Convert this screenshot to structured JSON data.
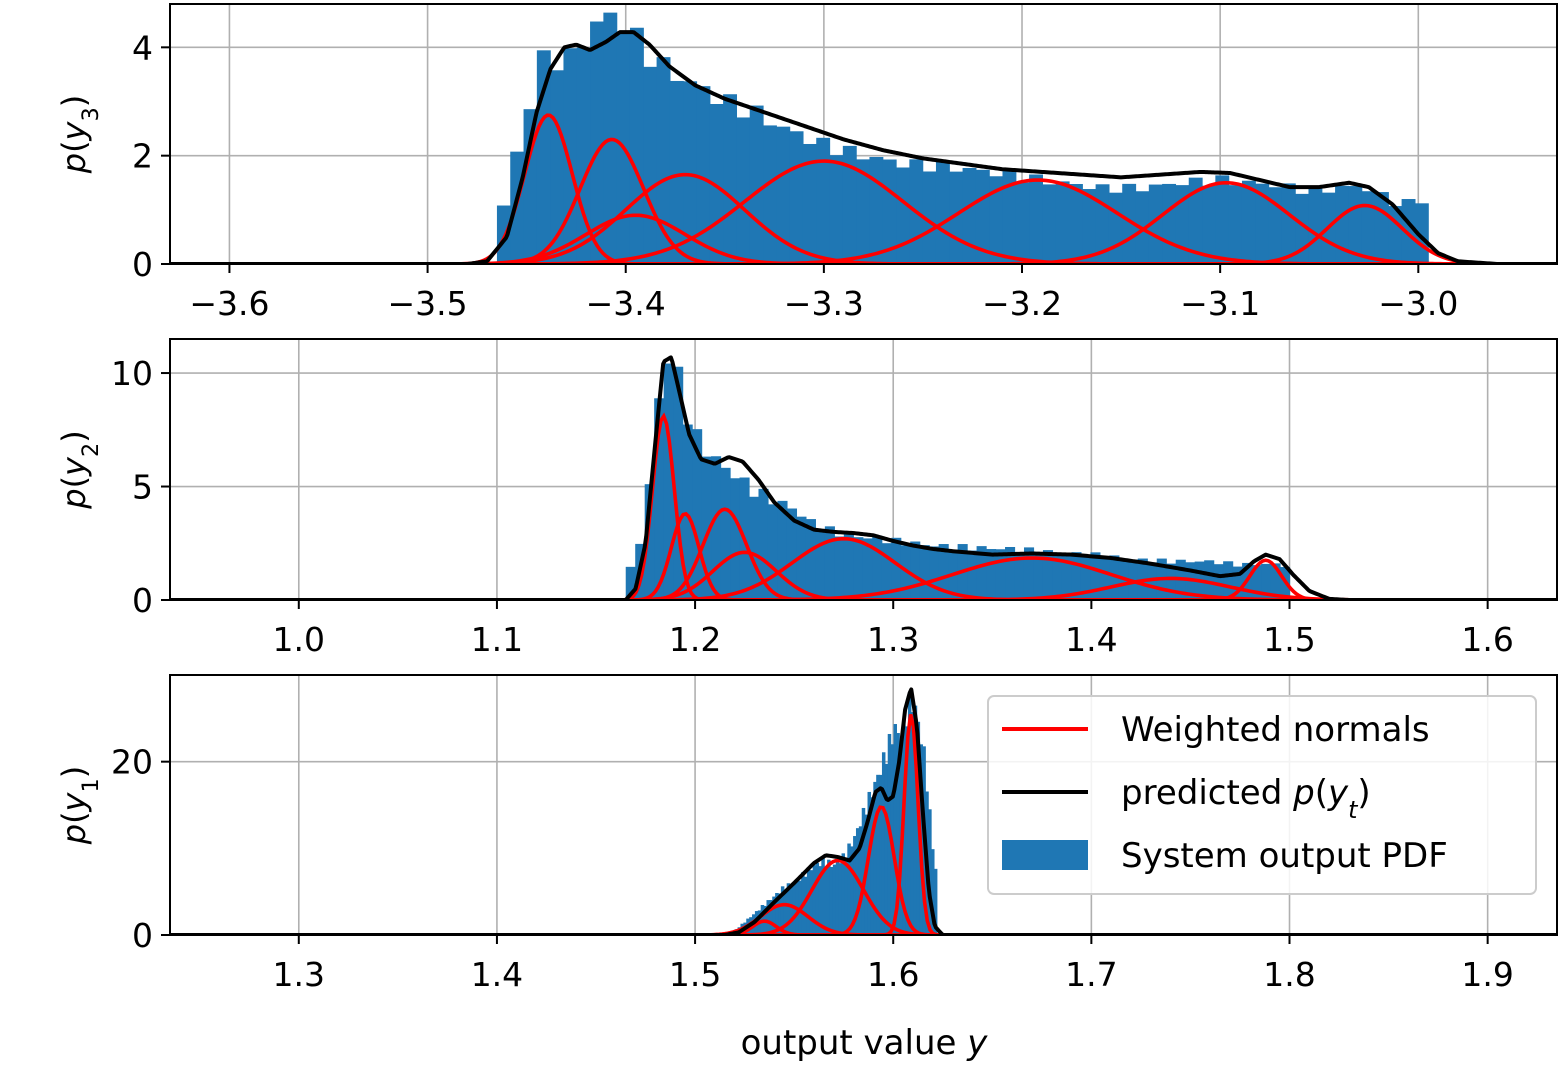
{
  "figure": {
    "xlabel": "output value y"
  },
  "legend": {
    "placement": "upper-right of bottom panel",
    "entries": [
      {
        "label": "Weighted normals",
        "kind": "line",
        "color": "#ff0000"
      },
      {
        "label": "predicted p(y_t)",
        "kind": "line",
        "color": "#000000"
      },
      {
        "label": "System output PDF",
        "kind": "patch",
        "color": "#1f77b4"
      }
    ]
  },
  "colors": {
    "histogram": "#1f77b4",
    "components": "#ff0000",
    "predicted": "#000000",
    "grid": "#b0b0b0"
  },
  "chart_data": [
    {
      "type": "histogram+mixture",
      "ylabel": "p(y3)",
      "xlim": [
        -3.63,
        -2.93
      ],
      "ylim": [
        0,
        4.8
      ],
      "xticks": [
        -3.6,
        -3.5,
        -3.4,
        -3.3,
        -3.2,
        -3.1,
        -3.0
      ],
      "xticklabels": [
        "−3.6",
        "−3.5",
        "−3.4",
        "−3.3",
        "−3.2",
        "−3.1",
        "−3.0"
      ],
      "yticks": [
        0,
        2,
        4
      ],
      "yticklabels": [
        "0",
        "2",
        "4"
      ],
      "grid": true,
      "hist_range": [
        -3.465,
        -2.995
      ],
      "hist_profile": [
        [
          -3.465,
          0.6
        ],
        [
          -3.458,
          1.6
        ],
        [
          -3.45,
          2.7
        ],
        [
          -3.444,
          3.7
        ],
        [
          -3.435,
          3.8
        ],
        [
          -3.425,
          3.8
        ],
        [
          -3.418,
          4.4
        ],
        [
          -3.41,
          4.55
        ],
        [
          -3.402,
          4.5
        ],
        [
          -3.393,
          4.05
        ],
        [
          -3.38,
          3.6
        ],
        [
          -3.365,
          3.3
        ],
        [
          -3.35,
          3.0
        ],
        [
          -3.335,
          2.8
        ],
        [
          -3.32,
          2.5
        ],
        [
          -3.3,
          2.2
        ],
        [
          -3.28,
          2.0
        ],
        [
          -3.26,
          1.85
        ],
        [
          -3.24,
          1.8
        ],
        [
          -3.22,
          1.72
        ],
        [
          -3.2,
          1.6
        ],
        [
          -3.18,
          1.5
        ],
        [
          -3.16,
          1.4
        ],
        [
          -3.14,
          1.4
        ],
        [
          -3.12,
          1.5
        ],
        [
          -3.1,
          1.55
        ],
        [
          -3.085,
          1.5
        ],
        [
          -3.07,
          1.45
        ],
        [
          -3.055,
          1.35
        ],
        [
          -3.04,
          1.4
        ],
        [
          -3.03,
          1.45
        ],
        [
          -3.02,
          1.3
        ],
        [
          -3.01,
          1.1
        ],
        [
          -2.995,
          1.2
        ]
      ],
      "components": [
        {
          "mu": -3.439,
          "sigma": 0.012,
          "height": 2.75
        },
        {
          "mu": -3.407,
          "sigma": 0.016,
          "height": 2.3
        },
        {
          "mu": -3.395,
          "sigma": 0.025,
          "height": 0.9
        },
        {
          "mu": -3.37,
          "sigma": 0.03,
          "height": 1.65
        },
        {
          "mu": -3.3,
          "sigma": 0.04,
          "height": 1.9
        },
        {
          "mu": -3.192,
          "sigma": 0.04,
          "height": 1.55
        },
        {
          "mu": -3.097,
          "sigma": 0.032,
          "height": 1.5
        },
        {
          "mu": -3.027,
          "sigma": 0.019,
          "height": 1.08
        }
      ],
      "predicted_profile": [
        [
          -3.63,
          0
        ],
        [
          -3.48,
          0
        ],
        [
          -3.47,
          0.05
        ],
        [
          -3.46,
          0.5
        ],
        [
          -3.452,
          1.6
        ],
        [
          -3.445,
          2.8
        ],
        [
          -3.438,
          3.6
        ],
        [
          -3.431,
          4.0
        ],
        [
          -3.425,
          4.05
        ],
        [
          -3.418,
          3.95
        ],
        [
          -3.41,
          4.1
        ],
        [
          -3.403,
          4.28
        ],
        [
          -3.396,
          4.28
        ],
        [
          -3.388,
          4.05
        ],
        [
          -3.378,
          3.65
        ],
        [
          -3.365,
          3.3
        ],
        [
          -3.35,
          3.05
        ],
        [
          -3.33,
          2.8
        ],
        [
          -3.31,
          2.55
        ],
        [
          -3.29,
          2.3
        ],
        [
          -3.27,
          2.1
        ],
        [
          -3.25,
          1.95
        ],
        [
          -3.23,
          1.85
        ],
        [
          -3.21,
          1.75
        ],
        [
          -3.19,
          1.7
        ],
        [
          -3.17,
          1.65
        ],
        [
          -3.15,
          1.6
        ],
        [
          -3.13,
          1.65
        ],
        [
          -3.11,
          1.7
        ],
        [
          -3.095,
          1.68
        ],
        [
          -3.08,
          1.55
        ],
        [
          -3.065,
          1.42
        ],
        [
          -3.05,
          1.42
        ],
        [
          -3.035,
          1.5
        ],
        [
          -3.025,
          1.42
        ],
        [
          -3.013,
          1.1
        ],
        [
          -3.0,
          0.55
        ],
        [
          -2.99,
          0.2
        ],
        [
          -2.98,
          0.05
        ],
        [
          -2.96,
          0
        ],
        [
          -2.93,
          0
        ]
      ]
    },
    {
      "type": "histogram+mixture",
      "ylabel": "p(y2)",
      "xlim": [
        0.935,
        1.635
      ],
      "ylim": [
        0,
        11.5
      ],
      "xticks": [
        1.0,
        1.1,
        1.2,
        1.3,
        1.4,
        1.5,
        1.6
      ],
      "xticklabels": [
        "1.0",
        "1.1",
        "1.2",
        "1.3",
        "1.4",
        "1.5",
        "1.6"
      ],
      "yticks": [
        0,
        5,
        10
      ],
      "yticklabels": [
        "0",
        "5",
        "10"
      ],
      "grid": true,
      "hist_range": [
        1.165,
        1.5
      ],
      "hist_profile": [
        [
          1.165,
          0.8
        ],
        [
          1.172,
          2.5
        ],
        [
          1.178,
          5.5
        ],
        [
          1.183,
          10.0
        ],
        [
          1.188,
          11.0
        ],
        [
          1.195,
          8.5
        ],
        [
          1.2,
          7.2
        ],
        [
          1.21,
          6.2
        ],
        [
          1.22,
          5.5
        ],
        [
          1.23,
          4.8
        ],
        [
          1.24,
          4.4
        ],
        [
          1.25,
          4.0
        ],
        [
          1.26,
          3.3
        ],
        [
          1.27,
          3.0
        ],
        [
          1.28,
          2.8
        ],
        [
          1.29,
          2.75
        ],
        [
          1.3,
          2.6
        ],
        [
          1.32,
          2.4
        ],
        [
          1.34,
          2.3
        ],
        [
          1.36,
          2.25
        ],
        [
          1.38,
          2.1
        ],
        [
          1.4,
          2.0
        ],
        [
          1.42,
          1.8
        ],
        [
          1.44,
          1.7
        ],
        [
          1.46,
          1.7
        ],
        [
          1.475,
          1.55
        ],
        [
          1.49,
          1.6
        ],
        [
          1.5,
          1.5
        ]
      ],
      "components": [
        {
          "mu": 1.184,
          "sigma": 0.0055,
          "height": 8.1
        },
        {
          "mu": 1.195,
          "sigma": 0.007,
          "height": 3.8
        },
        {
          "mu": 1.215,
          "sigma": 0.011,
          "height": 4.0
        },
        {
          "mu": 1.225,
          "sigma": 0.016,
          "height": 2.1
        },
        {
          "mu": 1.275,
          "sigma": 0.026,
          "height": 2.7
        },
        {
          "mu": 1.37,
          "sigma": 0.04,
          "height": 1.85
        },
        {
          "mu": 1.44,
          "sigma": 0.03,
          "height": 0.95
        },
        {
          "mu": 1.488,
          "sigma": 0.008,
          "height": 1.75
        }
      ],
      "predicted_profile": [
        [
          0.935,
          0
        ],
        [
          1.165,
          0
        ],
        [
          1.17,
          0.5
        ],
        [
          1.175,
          2.5
        ],
        [
          1.18,
          7.0
        ],
        [
          1.184,
          10.5
        ],
        [
          1.188,
          10.7
        ],
        [
          1.192,
          9.2
        ],
        [
          1.197,
          7.3
        ],
        [
          1.203,
          6.2
        ],
        [
          1.21,
          6.0
        ],
        [
          1.217,
          6.3
        ],
        [
          1.224,
          6.1
        ],
        [
          1.232,
          5.3
        ],
        [
          1.24,
          4.3
        ],
        [
          1.25,
          3.5
        ],
        [
          1.26,
          3.1
        ],
        [
          1.27,
          3.0
        ],
        [
          1.28,
          2.95
        ],
        [
          1.29,
          2.85
        ],
        [
          1.3,
          2.6
        ],
        [
          1.31,
          2.4
        ],
        [
          1.32,
          2.25
        ],
        [
          1.33,
          2.15
        ],
        [
          1.35,
          2.0
        ],
        [
          1.37,
          2.05
        ],
        [
          1.39,
          2.0
        ],
        [
          1.41,
          1.85
        ],
        [
          1.43,
          1.6
        ],
        [
          1.45,
          1.3
        ],
        [
          1.465,
          1.05
        ],
        [
          1.475,
          1.15
        ],
        [
          1.482,
          1.7
        ],
        [
          1.488,
          2.0
        ],
        [
          1.495,
          1.8
        ],
        [
          1.502,
          1.1
        ],
        [
          1.51,
          0.4
        ],
        [
          1.52,
          0.05
        ],
        [
          1.53,
          0
        ],
        [
          1.635,
          0
        ]
      ]
    },
    {
      "type": "histogram+mixture",
      "ylabel": "p(y1)",
      "xlim": [
        1.235,
        1.935
      ],
      "ylim": [
        0,
        30
      ],
      "xticks": [
        1.3,
        1.4,
        1.5,
        1.6,
        1.7,
        1.8,
        1.9
      ],
      "xticklabels": [
        "1.3",
        "1.4",
        "1.5",
        "1.6",
        "1.7",
        "1.8",
        "1.9"
      ],
      "yticks": [
        0,
        20
      ],
      "yticklabels": [
        "0",
        "20"
      ],
      "grid": true,
      "hist_range": [
        1.52,
        1.622
      ],
      "hist_profile": [
        [
          1.52,
          0.5
        ],
        [
          1.525,
          1.5
        ],
        [
          1.53,
          2.5
        ],
        [
          1.535,
          3.5
        ],
        [
          1.54,
          4.5
        ],
        [
          1.545,
          5.5
        ],
        [
          1.55,
          6.0
        ],
        [
          1.555,
          7.0
        ],
        [
          1.56,
          8.0
        ],
        [
          1.565,
          8.5
        ],
        [
          1.57,
          8.0
        ],
        [
          1.575,
          9.0
        ],
        [
          1.58,
          11.0
        ],
        [
          1.585,
          14.0
        ],
        [
          1.59,
          17.0
        ],
        [
          1.595,
          20.0
        ],
        [
          1.598,
          22.0
        ],
        [
          1.601,
          24.0
        ],
        [
          1.604,
          22.0
        ],
        [
          1.607,
          26.0
        ],
        [
          1.61,
          27.0
        ],
        [
          1.613,
          24.0
        ],
        [
          1.616,
          20.0
        ],
        [
          1.619,
          12.0
        ],
        [
          1.622,
          6.0
        ]
      ],
      "components": [
        {
          "mu": 1.535,
          "sigma": 0.006,
          "height": 1.6
        },
        {
          "mu": 1.545,
          "sigma": 0.012,
          "height": 3.5
        },
        {
          "mu": 1.572,
          "sigma": 0.013,
          "height": 8.6
        },
        {
          "mu": 1.594,
          "sigma": 0.0065,
          "height": 14.8
        },
        {
          "mu": 1.609,
          "sigma": 0.0035,
          "height": 25.5
        }
      ],
      "predicted_profile": [
        [
          1.235,
          0
        ],
        [
          1.515,
          0
        ],
        [
          1.522,
          0.3
        ],
        [
          1.53,
          1.5
        ],
        [
          1.54,
          3.8
        ],
        [
          1.55,
          6.0
        ],
        [
          1.56,
          8.3
        ],
        [
          1.566,
          9.2
        ],
        [
          1.572,
          9.0
        ],
        [
          1.578,
          8.6
        ],
        [
          1.583,
          10.0
        ],
        [
          1.587,
          13.0
        ],
        [
          1.591,
          16.5
        ],
        [
          1.594,
          17.0
        ],
        [
          1.597,
          15.5
        ],
        [
          1.6,
          16.0
        ],
        [
          1.603,
          20.0
        ],
        [
          1.606,
          26.0
        ],
        [
          1.609,
          28.5
        ],
        [
          1.612,
          24.0
        ],
        [
          1.615,
          14.0
        ],
        [
          1.618,
          5.0
        ],
        [
          1.621,
          1.0
        ],
        [
          1.625,
          0
        ],
        [
          1.935,
          0
        ]
      ]
    }
  ]
}
